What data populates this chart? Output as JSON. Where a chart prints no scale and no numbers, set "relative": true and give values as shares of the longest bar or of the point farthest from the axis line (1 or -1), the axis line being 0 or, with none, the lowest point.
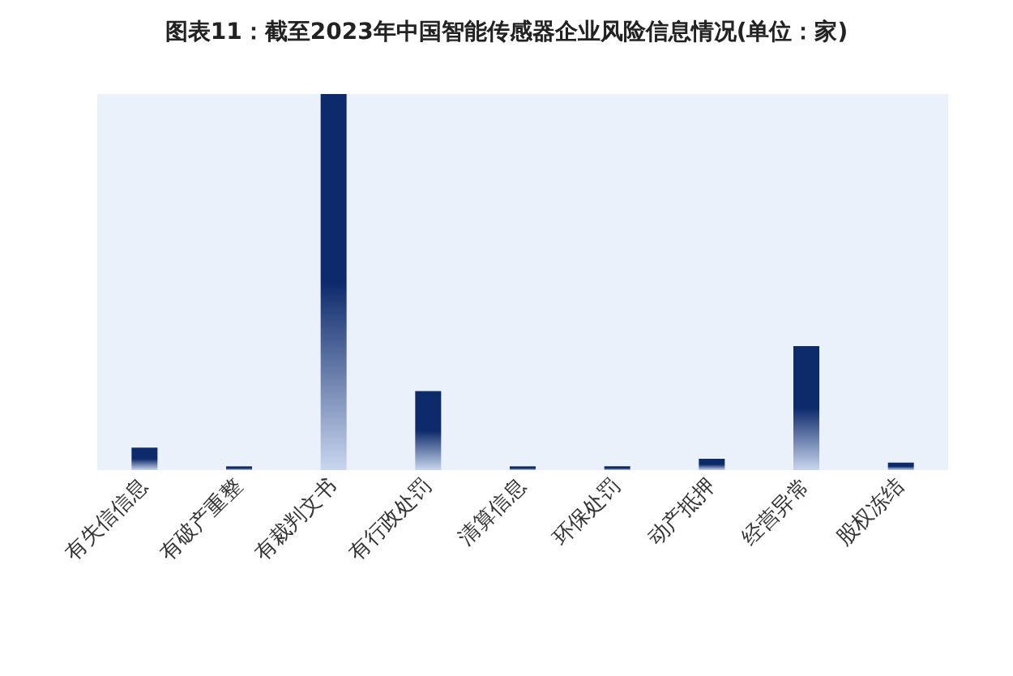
{
  "chart_data": {
    "type": "bar",
    "title": "图表11：截至2023年中国智能传感器企业风险信息情况(单位：家)",
    "relative": true,
    "categories": [
      "有失信信息",
      "有破产重整",
      "有裁判文书",
      "有行政处罚",
      "清算信息",
      "环保处罚",
      "动产抵押",
      "经营异常",
      "股权冻结"
    ],
    "series": [
      {
        "color": "#0d2a6b",
        "values": [
          0.06,
          0.01,
          1,
          0.21,
          0.01,
          0.01,
          0.03,
          0.33,
          0.02
        ]
      }
    ]
  }
}
